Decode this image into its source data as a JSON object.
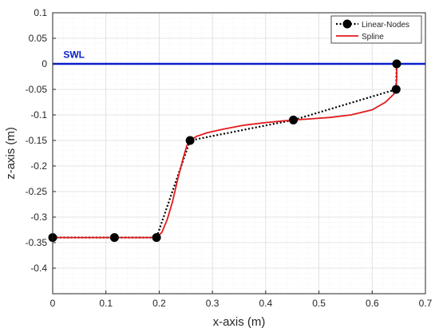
{
  "chart_data": {
    "type": "line",
    "xlabel": "x-axis (m)",
    "ylabel": "z-axis (m)",
    "xlim": [
      0,
      0.7
    ],
    "ylim": [
      -0.45,
      0.1
    ],
    "x_ticks": [
      0,
      0.1,
      0.2,
      0.3,
      0.4,
      0.5,
      0.6,
      0.7
    ],
    "y_ticks": [
      0.1,
      0.05,
      0,
      -0.05,
      -0.1,
      -0.15,
      -0.2,
      -0.25,
      -0.3,
      -0.35,
      -0.4
    ],
    "grid": true,
    "minor_grid": true,
    "legend_position": "top-right",
    "series": [
      {
        "name": "Linear-Nodes",
        "color": "#000000",
        "style": "dotted-with-markers",
        "x": [
          0,
          0.116,
          0.195,
          0.258,
          0.452,
          0.645,
          0.646
        ],
        "y": [
          -0.34,
          -0.34,
          -0.34,
          -0.15,
          -0.11,
          -0.05,
          0.0
        ]
      },
      {
        "name": "Spline",
        "color": "#e31a1c",
        "style": "solid",
        "x": [
          0,
          0.116,
          0.195,
          0.205,
          0.215,
          0.225,
          0.235,
          0.245,
          0.252,
          0.258,
          0.27,
          0.29,
          0.32,
          0.36,
          0.4,
          0.43,
          0.452,
          0.48,
          0.52,
          0.56,
          0.6,
          0.625,
          0.64,
          0.645,
          0.646,
          0.646
        ],
        "y": [
          -0.34,
          -0.34,
          -0.34,
          -0.33,
          -0.305,
          -0.27,
          -0.225,
          -0.185,
          -0.16,
          -0.15,
          -0.142,
          -0.135,
          -0.128,
          -0.12,
          -0.115,
          -0.112,
          -0.11,
          -0.108,
          -0.105,
          -0.1,
          -0.09,
          -0.075,
          -0.06,
          -0.05,
          -0.025,
          0.0
        ]
      }
    ],
    "annotations": [
      {
        "text": "SWL",
        "x": 0.02,
        "y": 0.01,
        "color": "#0a1fcc"
      }
    ],
    "reference_lines": [
      {
        "axis": "y",
        "value": 0,
        "color": "#0a1fcc",
        "label": "SWL"
      }
    ]
  }
}
